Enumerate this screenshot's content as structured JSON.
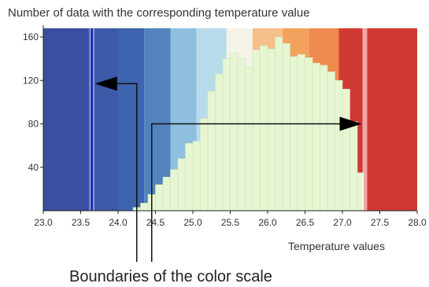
{
  "chart_data": {
    "type": "bar",
    "title": "Number of data with the corresponding temperature value",
    "xlabel": "Temperature values",
    "ylabel": "",
    "xlim": [
      23.0,
      28.0
    ],
    "ylim": [
      0,
      168
    ],
    "xticks": [
      "23.0",
      "23.5",
      "24.0",
      "24.5",
      "25.0",
      "25.5",
      "26.0",
      "26.5",
      "27.0",
      "27.5",
      "28.0"
    ],
    "yticks": [
      "40",
      "80",
      "120",
      "160"
    ],
    "bin_width": 0.1,
    "bins_start": [
      24.2,
      24.3,
      24.4,
      24.5,
      24.6,
      24.7,
      24.8,
      24.9,
      25.0,
      25.1,
      25.2,
      25.3,
      25.4,
      25.5,
      25.6,
      25.7,
      25.8,
      25.9,
      26.0,
      26.1,
      26.2,
      26.3,
      26.4,
      26.5,
      26.6,
      26.7,
      26.8,
      26.9,
      27.0,
      27.1,
      27.2
    ],
    "values": [
      3,
      7,
      15,
      24,
      31,
      38,
      48,
      62,
      64,
      85,
      110,
      126,
      140,
      145,
      140,
      132,
      148,
      152,
      149,
      160,
      154,
      142,
      144,
      141,
      136,
      134,
      128,
      120,
      112,
      82,
      35
    ],
    "color_bands": [
      {
        "from": 23.0,
        "to": 23.6,
        "color": "#3a4fa0"
      },
      {
        "from": 23.6,
        "to": 24.0,
        "color": "#3d5aa8"
      },
      {
        "from": 24.0,
        "to": 24.35,
        "color": "#3d64ae"
      },
      {
        "from": 24.35,
        "to": 24.7,
        "color": "#5283bd"
      },
      {
        "from": 24.7,
        "to": 25.05,
        "color": "#8ebfde"
      },
      {
        "from": 25.05,
        "to": 25.45,
        "color": "#b8dbec"
      },
      {
        "from": 25.45,
        "to": 25.8,
        "color": "#f3f3e8"
      },
      {
        "from": 25.8,
        "to": 26.2,
        "color": "#f6c08a"
      },
      {
        "from": 26.2,
        "to": 26.55,
        "color": "#f3a25d"
      },
      {
        "from": 26.55,
        "to": 26.95,
        "color": "#ef8a4e"
      },
      {
        "from": 26.95,
        "to": 28.0,
        "color": "#d03a32"
      }
    ],
    "bar_color": "#e6f6d2",
    "boundaries": [
      {
        "value": 23.65,
        "color": "#1a27c9"
      },
      {
        "value": 27.3,
        "color": "#f7a5a5"
      }
    ],
    "annotation": "Boundaries of the color scale",
    "grid": false
  }
}
